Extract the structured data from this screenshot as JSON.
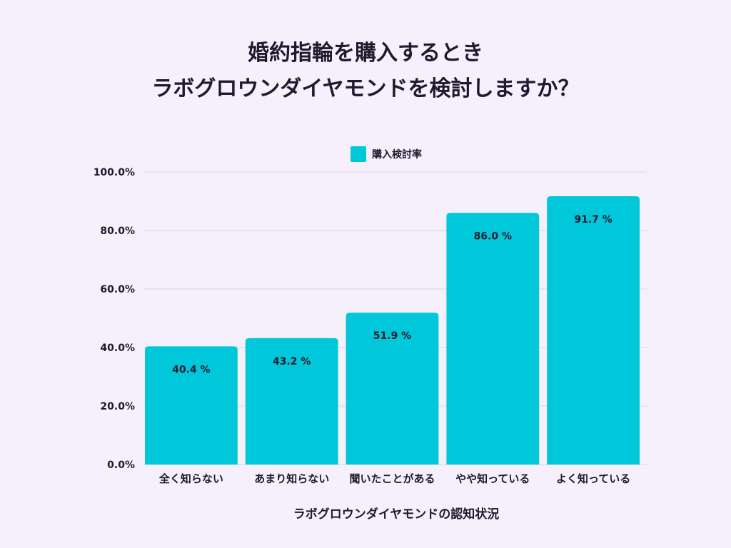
{
  "title_lines": [
    "婚約指輪を購入するとき",
    "ラボグロウンダイヤモンドを検討しますか？"
  ],
  "colors": {
    "background": "#f6f0fd",
    "bar": "#00c8da",
    "grid": "#d9d3e3",
    "text": "#1f1a2e"
  },
  "chart_data": {
    "type": "bar",
    "title": "婚約指輪を購入するとき ラボグロウンダイヤモンドを検討しますか？",
    "categories": [
      "全く知らない",
      "あまり知らない",
      "聞いたことがある",
      "やや知っている",
      "よく知っている"
    ],
    "series": [
      {
        "name": "購入検討率",
        "values": [
          40.4,
          43.2,
          51.9,
          86.0,
          91.7
        ],
        "labels": [
          "40.4 %",
          "43.2 %",
          "51.9 %",
          "86.0 %",
          "91.7 %"
        ]
      }
    ],
    "xlabel": "ラボグロウンダイヤモンドの認知状況",
    "ylabel": "",
    "ylim": [
      0,
      100
    ],
    "yticks": [
      0,
      20,
      40,
      60,
      80,
      100
    ],
    "ytick_labels": [
      "0.0%",
      "20.0%",
      "40.0%",
      "60.0%",
      "80.0%",
      "100.0%"
    ],
    "grid": true,
    "legend": "top-center"
  }
}
